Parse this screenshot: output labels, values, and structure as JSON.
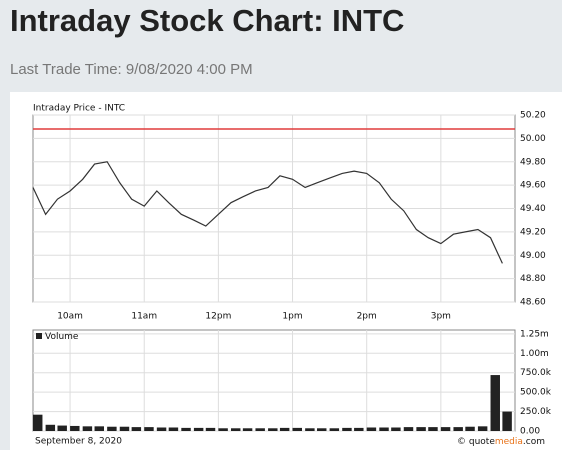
{
  "header": {
    "title": "Intraday Stock Chart: INTC",
    "subtitle": "Last Trade Time: 9/08/2020 4:00 PM"
  },
  "chart_data": [
    {
      "type": "line",
      "title": "Intraday Price - INTC",
      "color": "#333333",
      "x": [
        9.5,
        9.67,
        9.83,
        10,
        10.17,
        10.33,
        10.5,
        10.67,
        10.83,
        11,
        11.17,
        11.33,
        11.5,
        11.67,
        11.83,
        12,
        12.17,
        12.33,
        12.5,
        12.67,
        12.83,
        13,
        13.17,
        13.33,
        13.5,
        13.67,
        13.83,
        14,
        14.17,
        14.33,
        14.5,
        14.67,
        14.83,
        15,
        15.17,
        15.33,
        15.5,
        15.67,
        15.83
      ],
      "values": [
        49.58,
        49.35,
        49.48,
        49.55,
        49.65,
        49.78,
        49.8,
        49.62,
        49.48,
        49.42,
        49.55,
        49.45,
        49.35,
        49.3,
        49.25,
        49.35,
        49.45,
        49.5,
        49.55,
        49.58,
        49.68,
        49.65,
        49.58,
        49.62,
        49.66,
        49.7,
        49.72,
        49.7,
        49.62,
        49.48,
        49.38,
        49.22,
        49.15,
        49.1,
        49.18,
        49.2,
        49.22,
        49.15,
        48.93
      ],
      "reference_line": {
        "value": 50.08,
        "color": "#e03c3c"
      },
      "xlim": [
        9.5,
        16
      ],
      "xticks": [
        {
          "value": 10,
          "label": "10am"
        },
        {
          "value": 11,
          "label": "11am"
        },
        {
          "value": 12,
          "label": "12pm"
        },
        {
          "value": 13,
          "label": "1pm"
        },
        {
          "value": 14,
          "label": "2pm"
        },
        {
          "value": 15,
          "label": "3pm"
        }
      ],
      "ylim": [
        48.6,
        50.2
      ],
      "yticks": [
        {
          "value": 48.6,
          "label": "48.60"
        },
        {
          "value": 48.8,
          "label": "48.80"
        },
        {
          "value": 49.0,
          "label": "49.00"
        },
        {
          "value": 49.2,
          "label": "49.20"
        },
        {
          "value": 49.4,
          "label": "49.40"
        },
        {
          "value": 49.6,
          "label": "49.60"
        },
        {
          "value": 49.8,
          "label": "49.80"
        },
        {
          "value": 50.0,
          "label": "50.00"
        },
        {
          "value": 50.2,
          "label": "50.20"
        }
      ],
      "grid": true
    },
    {
      "type": "bar",
      "legend": "Volume",
      "color": "#222222",
      "x": [
        9.5,
        9.67,
        9.83,
        10,
        10.17,
        10.33,
        10.5,
        10.67,
        10.83,
        11,
        11.17,
        11.33,
        11.5,
        11.67,
        11.83,
        12,
        12.17,
        12.33,
        12.5,
        12.67,
        12.83,
        13,
        13.17,
        13.33,
        13.5,
        13.67,
        13.83,
        14,
        14.17,
        14.33,
        14.5,
        14.67,
        14.83,
        15,
        15.17,
        15.33,
        15.5,
        15.67,
        15.83
      ],
      "values": [
        210000,
        80000,
        70000,
        65000,
        60000,
        60000,
        55000,
        55000,
        50000,
        50000,
        45000,
        45000,
        40000,
        40000,
        40000,
        35000,
        35000,
        35000,
        35000,
        35000,
        40000,
        40000,
        35000,
        35000,
        35000,
        40000,
        40000,
        45000,
        45000,
        45000,
        50000,
        50000,
        50000,
        50000,
        50000,
        55000,
        60000,
        720000,
        250000
      ],
      "xlim": [
        9.5,
        16
      ],
      "xticks": [
        10,
        11,
        12,
        13,
        14,
        15
      ],
      "ylim": [
        0,
        1300000
      ],
      "yticks": [
        {
          "value": 0,
          "label": "0.00"
        },
        {
          "value": 250000,
          "label": "250.0k"
        },
        {
          "value": 500000,
          "label": "500.0k"
        },
        {
          "value": 750000,
          "label": "750.0k"
        },
        {
          "value": 1000000,
          "label": "1.00m"
        },
        {
          "value": 1250000,
          "label": "1.25m"
        }
      ],
      "grid": true
    }
  ],
  "footer": {
    "date": "September 8, 2020",
    "credit": [
      "© quote",
      "media",
      ".com"
    ]
  }
}
